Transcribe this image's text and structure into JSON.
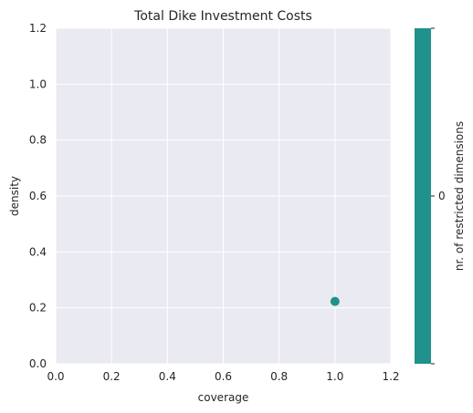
{
  "chart_data": {
    "type": "scatter",
    "title": "Total Dike Investment Costs",
    "xlabel": "coverage",
    "ylabel": "density",
    "xlim": [
      0.0,
      1.2
    ],
    "ylim": [
      0.0,
      1.2
    ],
    "xticks": [
      "0.0",
      "0.2",
      "0.4",
      "0.6",
      "0.8",
      "1.0",
      "1.2"
    ],
    "yticks": [
      "0.0",
      "0.2",
      "0.4",
      "0.6",
      "0.8",
      "1.0",
      "1.2"
    ],
    "xtick_values": [
      0.0,
      0.2,
      0.4,
      0.6,
      0.8,
      1.0,
      1.2
    ],
    "ytick_values": [
      0.0,
      0.2,
      0.4,
      0.6,
      0.8,
      1.0,
      1.2
    ],
    "points": [
      {
        "x": 1.0,
        "y": 0.223,
        "color_value": 0
      }
    ],
    "grid": true,
    "colorbar": {
      "label": "nr. of restricted dimensions",
      "ticks": [
        "0"
      ],
      "color": "#21918c"
    },
    "colors": {
      "plot_background": "#eaeaf2",
      "grid": "#ffffff",
      "point": "#21918c"
    }
  }
}
